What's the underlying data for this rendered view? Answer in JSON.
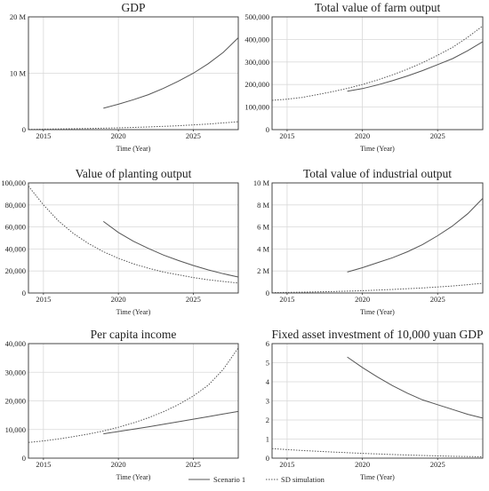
{
  "legend": {
    "scenario_label": "Scenario 1",
    "sd_label": "SD simulation"
  },
  "chart_data": [
    {
      "type": "line",
      "title": "GDP",
      "xlabel": "Time (Year)",
      "ylabel": "",
      "xlim": [
        2014,
        2028
      ],
      "ylim": [
        0,
        20000000
      ],
      "xticks": [
        2015,
        2020,
        2025
      ],
      "xtick_labels": [
        "2015",
        "2020",
        "2025"
      ],
      "yticks": [
        0,
        10000000,
        20000000
      ],
      "ytick_labels": [
        "0",
        "10 M",
        "20 M"
      ],
      "series": [
        {
          "name": "Scenario 1",
          "style": "solid",
          "x": [
            2019,
            2020,
            2021,
            2022,
            2023,
            2024,
            2025,
            2026,
            2027,
            2028
          ],
          "y": [
            3800000,
            4500000,
            5300000,
            6200000,
            7300000,
            8600000,
            10000000,
            11700000,
            13700000,
            16300000
          ]
        },
        {
          "name": "SD simulation",
          "style": "dotted",
          "x": [
            2014,
            2016,
            2018,
            2020,
            2022,
            2024,
            2026,
            2028
          ],
          "y": [
            50000,
            120000,
            200000,
            320000,
            480000,
            700000,
            1000000,
            1400000
          ]
        }
      ]
    },
    {
      "type": "line",
      "title": "Total value of farm output",
      "xlabel": "Time (Year)",
      "ylabel": "",
      "xlim": [
        2014,
        2028
      ],
      "ylim": [
        0,
        500000
      ],
      "xticks": [
        2015,
        2020,
        2025
      ],
      "xtick_labels": [
        "2015",
        "2020",
        "2025"
      ],
      "yticks": [
        0,
        100000,
        200000,
        300000,
        400000,
        500000
      ],
      "ytick_labels": [
        "0",
        "100,000",
        "200,000",
        "300,000",
        "400,000",
        "500,000"
      ],
      "series": [
        {
          "name": "Scenario 1",
          "style": "solid",
          "x": [
            2019,
            2020,
            2021,
            2022,
            2023,
            2024,
            2025,
            2026,
            2027,
            2028
          ],
          "y": [
            170000,
            182000,
            198000,
            217000,
            238000,
            262000,
            288000,
            315000,
            350000,
            390000
          ]
        },
        {
          "name": "SD simulation",
          "style": "dotted",
          "x": [
            2014,
            2015,
            2016,
            2017,
            2018,
            2019,
            2020,
            2021,
            2022,
            2023,
            2024,
            2025,
            2026,
            2027,
            2028
          ],
          "y": [
            130000,
            135000,
            143000,
            155000,
            168000,
            183000,
            200000,
            220000,
            243000,
            268000,
            297000,
            330000,
            365000,
            410000,
            460000
          ]
        }
      ]
    },
    {
      "type": "line",
      "title": "Value of planting output",
      "xlabel": "Time (Year)",
      "ylabel": "",
      "xlim": [
        2014,
        2028
      ],
      "ylim": [
        0,
        100000
      ],
      "xticks": [
        2015,
        2020,
        2025
      ],
      "xtick_labels": [
        "2015",
        "2020",
        "2025"
      ],
      "yticks": [
        0,
        20000,
        40000,
        60000,
        80000,
        100000
      ],
      "ytick_labels": [
        "0",
        "20,000",
        "40,000",
        "60,000",
        "80,000",
        "100,000"
      ],
      "series": [
        {
          "name": "Scenario 1",
          "style": "solid",
          "x": [
            2019,
            2020,
            2021,
            2022,
            2023,
            2024,
            2025,
            2026,
            2027,
            2028
          ],
          "y": [
            65000,
            55000,
            47000,
            40500,
            34500,
            29500,
            25000,
            21000,
            17500,
            14500
          ]
        },
        {
          "name": "SD simulation",
          "style": "dotted",
          "x": [
            2014,
            2015,
            2016,
            2017,
            2018,
            2019,
            2020,
            2021,
            2022,
            2023,
            2024,
            2025,
            2026,
            2027,
            2028
          ],
          "y": [
            97000,
            80000,
            65500,
            54000,
            45000,
            37500,
            31500,
            26500,
            22500,
            19000,
            16500,
            14000,
            12000,
            10500,
            9000
          ]
        }
      ]
    },
    {
      "type": "line",
      "title": "Total value of industrial output",
      "xlabel": "Time (Year)",
      "ylabel": "",
      "xlim": [
        2014,
        2028
      ],
      "ylim": [
        0,
        10000000
      ],
      "xticks": [
        2015,
        2020,
        2025
      ],
      "xtick_labels": [
        "2015",
        "2020",
        "2025"
      ],
      "yticks": [
        0,
        2000000,
        4000000,
        6000000,
        8000000,
        10000000
      ],
      "ytick_labels": [
        "0",
        "2 M",
        "4 M",
        "6 M",
        "8 M",
        "10 M"
      ],
      "series": [
        {
          "name": "Scenario 1",
          "style": "solid",
          "x": [
            2019,
            2020,
            2021,
            2022,
            2023,
            2024,
            2025,
            2026,
            2027,
            2028
          ],
          "y": [
            1900000,
            2300000,
            2750000,
            3200000,
            3750000,
            4400000,
            5200000,
            6100000,
            7200000,
            8600000
          ]
        },
        {
          "name": "SD simulation",
          "style": "dotted",
          "x": [
            2014,
            2016,
            2018,
            2020,
            2022,
            2024,
            2026,
            2028
          ],
          "y": [
            30000,
            70000,
            130000,
            210000,
            320000,
            460000,
            640000,
            880000
          ]
        }
      ]
    },
    {
      "type": "line",
      "title": "Per capita income",
      "xlabel": "Time (Year)",
      "ylabel": "",
      "xlim": [
        2014,
        2028
      ],
      "ylim": [
        0,
        40000
      ],
      "xticks": [
        2015,
        2020,
        2025
      ],
      "xtick_labels": [
        "2015",
        "2020",
        "2025"
      ],
      "yticks": [
        0,
        10000,
        20000,
        30000,
        40000
      ],
      "ytick_labels": [
        "0",
        "10,000",
        "20,000",
        "30,000",
        "40,000"
      ],
      "series": [
        {
          "name": "Scenario 1",
          "style": "solid",
          "x": [
            2019,
            2020,
            2021,
            2022,
            2023,
            2024,
            2025,
            2026,
            2027,
            2028
          ],
          "y": [
            8500,
            9300,
            10100,
            10900,
            11800,
            12700,
            13600,
            14500,
            15400,
            16300
          ]
        },
        {
          "name": "SD simulation",
          "style": "dotted",
          "x": [
            2014,
            2015,
            2016,
            2017,
            2018,
            2019,
            2020,
            2021,
            2022,
            2023,
            2024,
            2025,
            2026,
            2027,
            2028
          ],
          "y": [
            5500,
            6000,
            6700,
            7500,
            8400,
            9500,
            10800,
            12300,
            14100,
            16200,
            18700,
            21700,
            25500,
            31000,
            38500
          ]
        }
      ]
    },
    {
      "type": "line",
      "title": "Fixed asset investment of 10,000 yuan GDP",
      "xlabel": "Time (Year)",
      "ylabel": "",
      "xlim": [
        2014,
        2028
      ],
      "ylim": [
        0,
        6
      ],
      "xticks": [
        2015,
        2020,
        2025
      ],
      "xtick_labels": [
        "2015",
        "2020",
        "2025"
      ],
      "yticks": [
        0,
        1,
        2,
        3,
        4,
        5,
        6
      ],
      "ytick_labels": [
        "0",
        "1",
        "2",
        "3",
        "4",
        "5",
        "6"
      ],
      "series": [
        {
          "name": "Scenario 1",
          "style": "solid",
          "x": [
            2019,
            2020,
            2021,
            2022,
            2023,
            2024,
            2025,
            2026,
            2027,
            2028
          ],
          "y": [
            5.3,
            4.75,
            4.25,
            3.8,
            3.4,
            3.05,
            2.8,
            2.55,
            2.3,
            2.1
          ]
        },
        {
          "name": "SD simulation",
          "style": "dotted",
          "x": [
            2014,
            2016,
            2018,
            2020,
            2022,
            2024,
            2026,
            2028
          ],
          "y": [
            0.5,
            0.4,
            0.32,
            0.25,
            0.19,
            0.14,
            0.1,
            0.07
          ]
        }
      ]
    }
  ]
}
